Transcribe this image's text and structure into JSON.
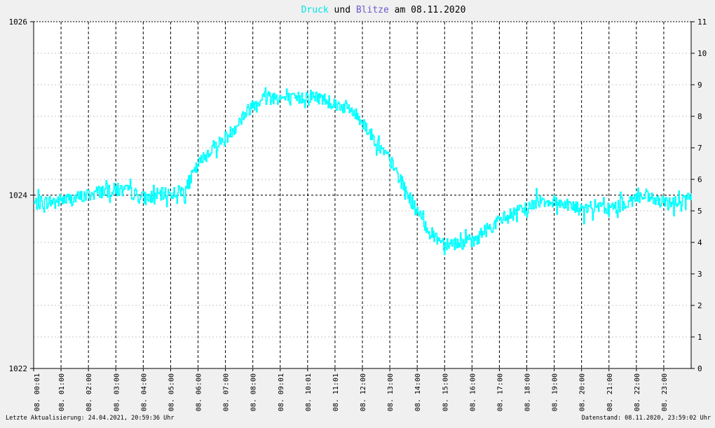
{
  "title": {
    "part1": "Druck",
    "part2": " und ",
    "part3": "Blitze",
    "part4": " am 08.11.2020"
  },
  "colors": {
    "background": "#f0f0f0",
    "plot_background": "#ffffff",
    "druck": "#00ffff",
    "blitze": "#6a5acd",
    "title_text": "#000000"
  },
  "footer": {
    "left": "Letzte Aktualisierung: 24.04.2021, 20:59:36 Uhr",
    "right": "Datenstand: 08.11.2020, 23:59:02 Uhr"
  },
  "chart_data": {
    "type": "line",
    "grid": true,
    "left_axis": {
      "ylim": [
        1022,
        1026
      ],
      "ticks": [
        "1022",
        "1024",
        "1026"
      ]
    },
    "right_axis": {
      "ylim": [
        0,
        11
      ],
      "ticks": [
        "0",
        "1",
        "2",
        "3",
        "4",
        "5",
        "6",
        "7",
        "8",
        "9",
        "10",
        "11"
      ]
    },
    "x_range_hours": [
      0,
      24
    ],
    "x_tick_labels": [
      "08. 00:01",
      "08. 01:00",
      "08. 02:00",
      "08. 03:00",
      "08. 04:00",
      "08. 05:00",
      "08. 06:00",
      "08. 07:00",
      "08. 08:00",
      "08. 09:01",
      "08. 10:01",
      "08. 11:01",
      "08. 12:00",
      "08. 13:00",
      "08. 14:00",
      "08. 15:00",
      "08. 16:00",
      "08. 17:00",
      "08. 18:00",
      "08. 19:00",
      "08. 20:00",
      "08. 21:00",
      "08. 22:00",
      "08. 23:00"
    ],
    "series": [
      {
        "name": "Druck",
        "x_hours": [
          0,
          0.5,
          1,
          1.5,
          2,
          2.5,
          3,
          3.5,
          4,
          4.5,
          5,
          5.5,
          6,
          6.5,
          7,
          7.5,
          8,
          8.5,
          9,
          9.5,
          10,
          10.5,
          11,
          11.5,
          12,
          12.5,
          13,
          13.5,
          14,
          14.5,
          15,
          15.5,
          16,
          16.5,
          17,
          17.5,
          18,
          18.5,
          19,
          19.5,
          20,
          20.5,
          21,
          21.5,
          22,
          22.5,
          23,
          23.5,
          24
        ],
        "values": [
          1023.9,
          1023.92,
          1023.94,
          1023.96,
          1024,
          1024.05,
          1024.06,
          1024.04,
          1023.96,
          1024,
          1024.02,
          1024.05,
          1024.35,
          1024.55,
          1024.65,
          1024.85,
          1025.05,
          1025.15,
          1025.12,
          1025.1,
          1025.15,
          1025.12,
          1025.05,
          1025.0,
          1024.85,
          1024.6,
          1024.4,
          1024.1,
          1023.8,
          1023.55,
          1023.45,
          1023.45,
          1023.45,
          1023.6,
          1023.7,
          1023.78,
          1023.85,
          1023.95,
          1023.92,
          1023.9,
          1023.82,
          1023.87,
          1023.83,
          1023.9,
          1023.98,
          1023.96,
          1023.9,
          1023.92,
          1023.98
        ],
        "noise_amplitude": 0.08
      }
    ]
  }
}
